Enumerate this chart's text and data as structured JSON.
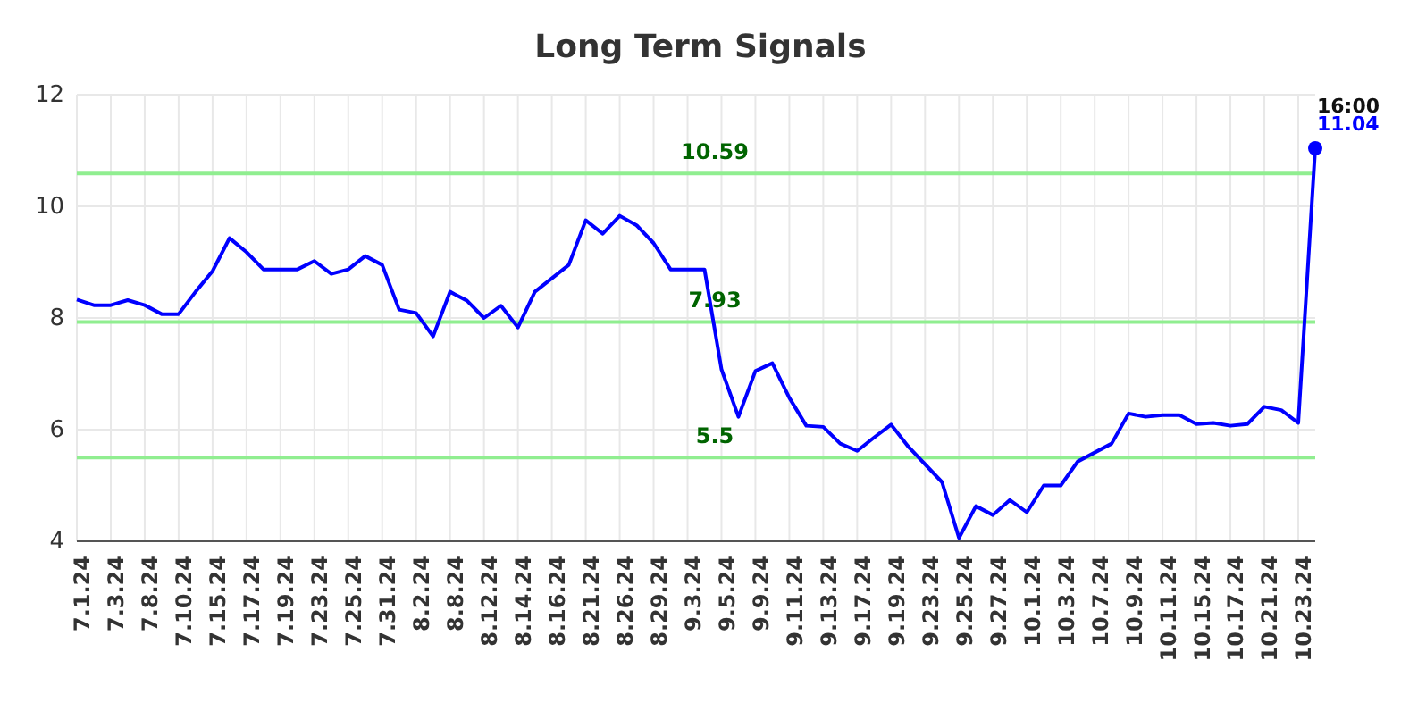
{
  "chart_data": {
    "type": "line",
    "title": "Long Term Signals",
    "categories": [
      "7.1.24",
      null,
      "7.3.24",
      null,
      "7.8.24",
      null,
      "7.10.24",
      null,
      "7.15.24",
      null,
      "7.17.24",
      null,
      "7.19.24",
      null,
      "7.23.24",
      null,
      "7.25.24",
      null,
      "7.31.24",
      null,
      "8.2.24",
      null,
      "8.8.24",
      null,
      "8.12.24",
      null,
      "8.14.24",
      null,
      "8.16.24",
      null,
      "8.21.24",
      null,
      "8.26.24",
      null,
      "8.29.24",
      null,
      "9.3.24",
      null,
      "9.5.24",
      null,
      "9.9.24",
      null,
      "9.11.24",
      null,
      "9.13.24",
      null,
      "9.17.24",
      null,
      "9.19.24",
      null,
      "9.23.24",
      null,
      "9.25.24",
      null,
      "9.27.24",
      null,
      "10.1.24",
      null,
      "10.3.24",
      null,
      "10.7.24",
      null,
      "10.9.24",
      null,
      "10.11.24",
      null,
      "10.15.24",
      null,
      "10.17.24",
      null,
      "10.21.24",
      null,
      "10.23.24",
      null
    ],
    "series": [
      {
        "color": "#0000ff",
        "values": [
          8.33,
          8.23,
          8.23,
          8.32,
          8.23,
          8.07,
          8.07,
          8.47,
          8.84,
          9.43,
          9.18,
          8.87,
          8.87,
          8.87,
          9.02,
          8.79,
          8.87,
          9.11,
          8.95,
          8.15,
          8.09,
          7.67,
          8.47,
          8.31,
          8.0,
          8.22,
          7.83,
          8.47,
          8.71,
          8.95,
          9.75,
          9.51,
          9.83,
          9.66,
          9.34,
          8.87,
          8.87,
          8.87,
          7.08,
          6.23,
          7.05,
          7.19,
          6.57,
          6.07,
          6.05,
          5.75,
          5.62,
          5.86,
          6.09,
          5.7,
          5.38,
          5.06,
          4.06,
          4.63,
          4.47,
          4.74,
          4.52,
          5.0,
          5.0,
          5.43,
          5.59,
          5.75,
          6.29,
          6.23,
          6.26,
          6.26,
          6.1,
          6.12,
          6.07,
          6.1,
          6.41,
          6.35,
          6.12,
          11.04
        ],
        "value_labels": [
          null,
          null,
          null,
          null,
          null,
          null,
          null,
          null,
          null,
          null,
          null,
          null,
          null,
          null,
          null,
          null,
          null,
          null,
          null,
          null,
          null,
          null,
          null,
          null,
          null,
          null,
          null,
          null,
          null,
          null,
          null,
          null,
          null,
          null,
          null,
          null,
          null,
          null,
          null,
          null,
          null,
          null,
          null,
          null,
          null,
          null,
          null,
          null,
          null,
          null,
          null,
          null,
          null,
          null,
          null,
          null,
          null,
          null,
          null,
          null,
          null,
          null,
          null,
          null,
          null,
          null,
          null,
          null,
          null,
          null,
          null,
          null,
          null,
          "11.04"
        ]
      }
    ],
    "ylim": [
      4,
      12
    ],
    "yticks": [
      4,
      6,
      8,
      10,
      12
    ],
    "grid": true,
    "ref_lines": [
      {
        "axis": "y",
        "value": 10.59,
        "label": "10.59",
        "color": "#90ee90"
      },
      {
        "axis": "y",
        "value": 7.93,
        "label": "7.93",
        "color": "#90ee90"
      },
      {
        "axis": "y",
        "value": 5.5,
        "label": "5.5",
        "color": "#90ee90"
      }
    ],
    "annotations": [
      "16:00"
    ]
  }
}
